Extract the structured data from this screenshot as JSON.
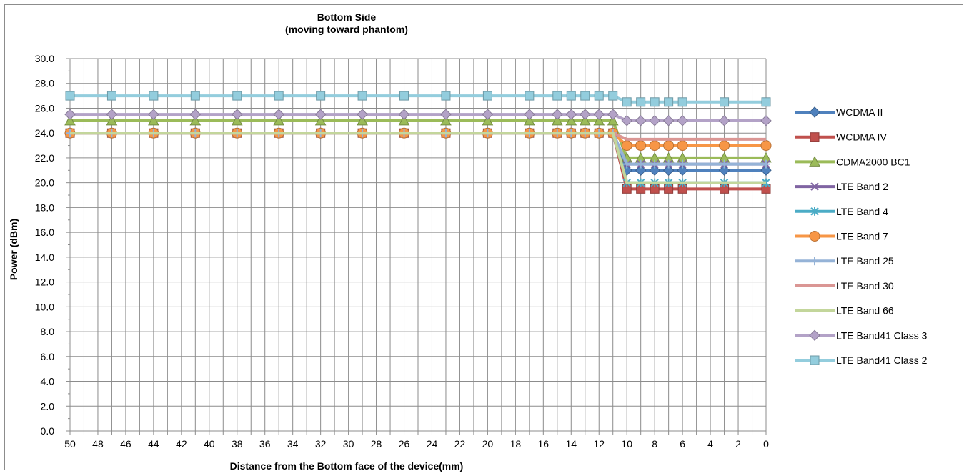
{
  "chart_data": {
    "type": "line",
    "title": "Bottom Side",
    "subtitle": "(moving toward phantom)",
    "xlabel": "Distance from the Bottom face of the device(mm)",
    "ylabel": "Power (dBm)",
    "ylim": [
      0,
      30
    ],
    "ytick_step": 2,
    "ytick_decimals": 1,
    "x_axis": "reversed",
    "xlim": [
      0,
      50
    ],
    "x_ticks": [
      50,
      48,
      46,
      44,
      42,
      40,
      38,
      36,
      34,
      32,
      30,
      28,
      26,
      24,
      22,
      20,
      18,
      16,
      14,
      12,
      10,
      8,
      6,
      4,
      2,
      0
    ],
    "grid": true,
    "legend_position": "right",
    "x": [
      50,
      47,
      44,
      41,
      38,
      35,
      32,
      29,
      26,
      23,
      20,
      17,
      15,
      14,
      13,
      12,
      11,
      10,
      9,
      8,
      7,
      6,
      3,
      0
    ],
    "series": [
      {
        "name": "WCDMA II",
        "color": "#4f81bd",
        "marker": "diamond",
        "values": [
          24,
          24,
          24,
          24,
          24,
          24,
          24,
          24,
          24,
          24,
          24,
          24,
          24,
          24,
          24,
          24,
          24,
          21,
          21,
          21,
          21,
          21,
          21,
          21
        ]
      },
      {
        "name": "WCDMA IV",
        "color": "#c0504d",
        "marker": "square",
        "values": [
          24,
          24,
          24,
          24,
          24,
          24,
          24,
          24,
          24,
          24,
          24,
          24,
          24,
          24,
          24,
          24,
          24,
          19.5,
          19.5,
          19.5,
          19.5,
          19.5,
          19.5,
          19.5
        ]
      },
      {
        "name": "CDMA2000 BC1",
        "color": "#9bbb59",
        "marker": "triangle",
        "values": [
          25,
          25,
          25,
          25,
          25,
          25,
          25,
          25,
          25,
          25,
          25,
          25,
          25,
          25,
          25,
          25,
          25,
          22,
          22,
          22,
          22,
          22,
          22,
          22
        ]
      },
      {
        "name": "LTE Band 2",
        "color": "#8064a2",
        "marker": "x",
        "values": [
          24,
          24,
          24,
          24,
          24,
          24,
          24,
          24,
          24,
          24,
          24,
          24,
          24,
          24,
          24,
          24,
          24,
          21.5,
          21.5,
          21.5,
          21.5,
          21.5,
          21.5,
          21.5
        ]
      },
      {
        "name": "LTE Band 4",
        "color": "#4bacc6",
        "marker": "star",
        "values": [
          24,
          24,
          24,
          24,
          24,
          24,
          24,
          24,
          24,
          24,
          24,
          24,
          24,
          24,
          24,
          24,
          24,
          20,
          20,
          20,
          20,
          20,
          20,
          20
        ]
      },
      {
        "name": "LTE Band 7",
        "color": "#f79646",
        "marker": "circle",
        "values": [
          24,
          24,
          24,
          24,
          24,
          24,
          24,
          24,
          24,
          24,
          24,
          24,
          24,
          24,
          24,
          24,
          24,
          23,
          23,
          23,
          23,
          23,
          23,
          23
        ]
      },
      {
        "name": "LTE Band 25",
        "color": "#95b3d7",
        "marker": "plus",
        "values": [
          24,
          24,
          24,
          24,
          24,
          24,
          24,
          24,
          24,
          24,
          24,
          24,
          24,
          24,
          24,
          24,
          24,
          21.5,
          21.5,
          21.5,
          21.5,
          21.5,
          21.5,
          21.5
        ]
      },
      {
        "name": "LTE Band 30",
        "color": "#da9694",
        "marker": "none",
        "values": [
          24,
          24,
          24,
          24,
          24,
          24,
          24,
          24,
          24,
          24,
          24,
          24,
          24,
          24,
          24,
          24,
          24,
          23.5,
          23.5,
          23.5,
          23.5,
          23.5,
          23.5,
          23.5
        ]
      },
      {
        "name": "LTE Band 66",
        "color": "#c3d69b",
        "marker": "none",
        "values": [
          24,
          24,
          24,
          24,
          24,
          24,
          24,
          24,
          24,
          24,
          24,
          24,
          24,
          24,
          24,
          24,
          24,
          20,
          20,
          20,
          20,
          20,
          20,
          20
        ]
      },
      {
        "name": "LTE Band41 Class 3",
        "color": "#b3a2c7",
        "marker": "diamond",
        "values": [
          25.5,
          25.5,
          25.5,
          25.5,
          25.5,
          25.5,
          25.5,
          25.5,
          25.5,
          25.5,
          25.5,
          25.5,
          25.5,
          25.5,
          25.5,
          25.5,
          25.5,
          25,
          25,
          25,
          25,
          25,
          25,
          25
        ]
      },
      {
        "name": "LTE Band41 Class 2",
        "color": "#93cddd",
        "marker": "square",
        "values": [
          27,
          27,
          27,
          27,
          27,
          27,
          27,
          27,
          27,
          27,
          27,
          27,
          27,
          27,
          27,
          27,
          27,
          26.5,
          26.5,
          26.5,
          26.5,
          26.5,
          26.5,
          26.5
        ]
      }
    ]
  }
}
